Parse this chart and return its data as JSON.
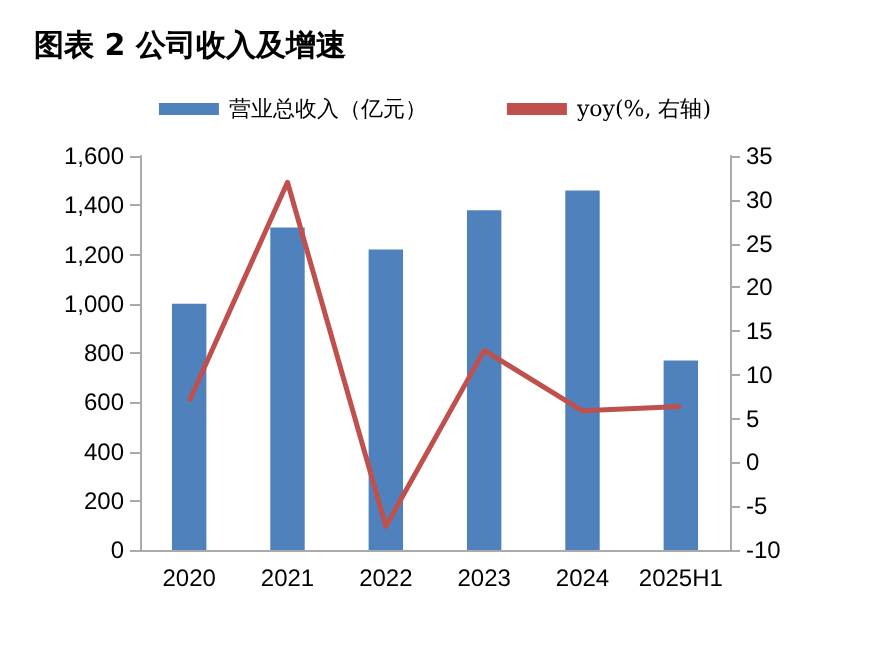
{
  "chart_data": {
    "type": "bar",
    "title": "图表 2 公司收入及增速",
    "categories": [
      "2020",
      "2021",
      "2022",
      "2023",
      "2024",
      "2025H1"
    ],
    "series": [
      {
        "name": "营业总收入（亿元）",
        "color": "#4f81bd",
        "values": [
          1000,
          1310,
          1220,
          1380,
          1460,
          770
        ]
      },
      {
        "name": "yoy(%, 右轴)",
        "type": "line",
        "axis": "y2",
        "color": "#c0504d",
        "values": [
          7,
          32,
          -7.3,
          12.8,
          5.9,
          6.4
        ]
      }
    ],
    "ylim": [
      0,
      1600
    ],
    "yticks": [
      0,
      200,
      400,
      600,
      800,
      {
        "value": 1000,
        "label": "1,000"
      },
      {
        "value": 1200,
        "label": "1,200"
      },
      {
        "value": 1400,
        "label": "1,400"
      },
      {
        "value": 1600,
        "label": "1,600"
      }
    ],
    "y2lim": [
      -10,
      35
    ],
    "y2ticks": [
      -10,
      -5,
      0,
      5,
      10,
      15,
      20,
      25,
      30,
      35
    ],
    "grid": false,
    "legend": "top",
    "marker": "none"
  }
}
